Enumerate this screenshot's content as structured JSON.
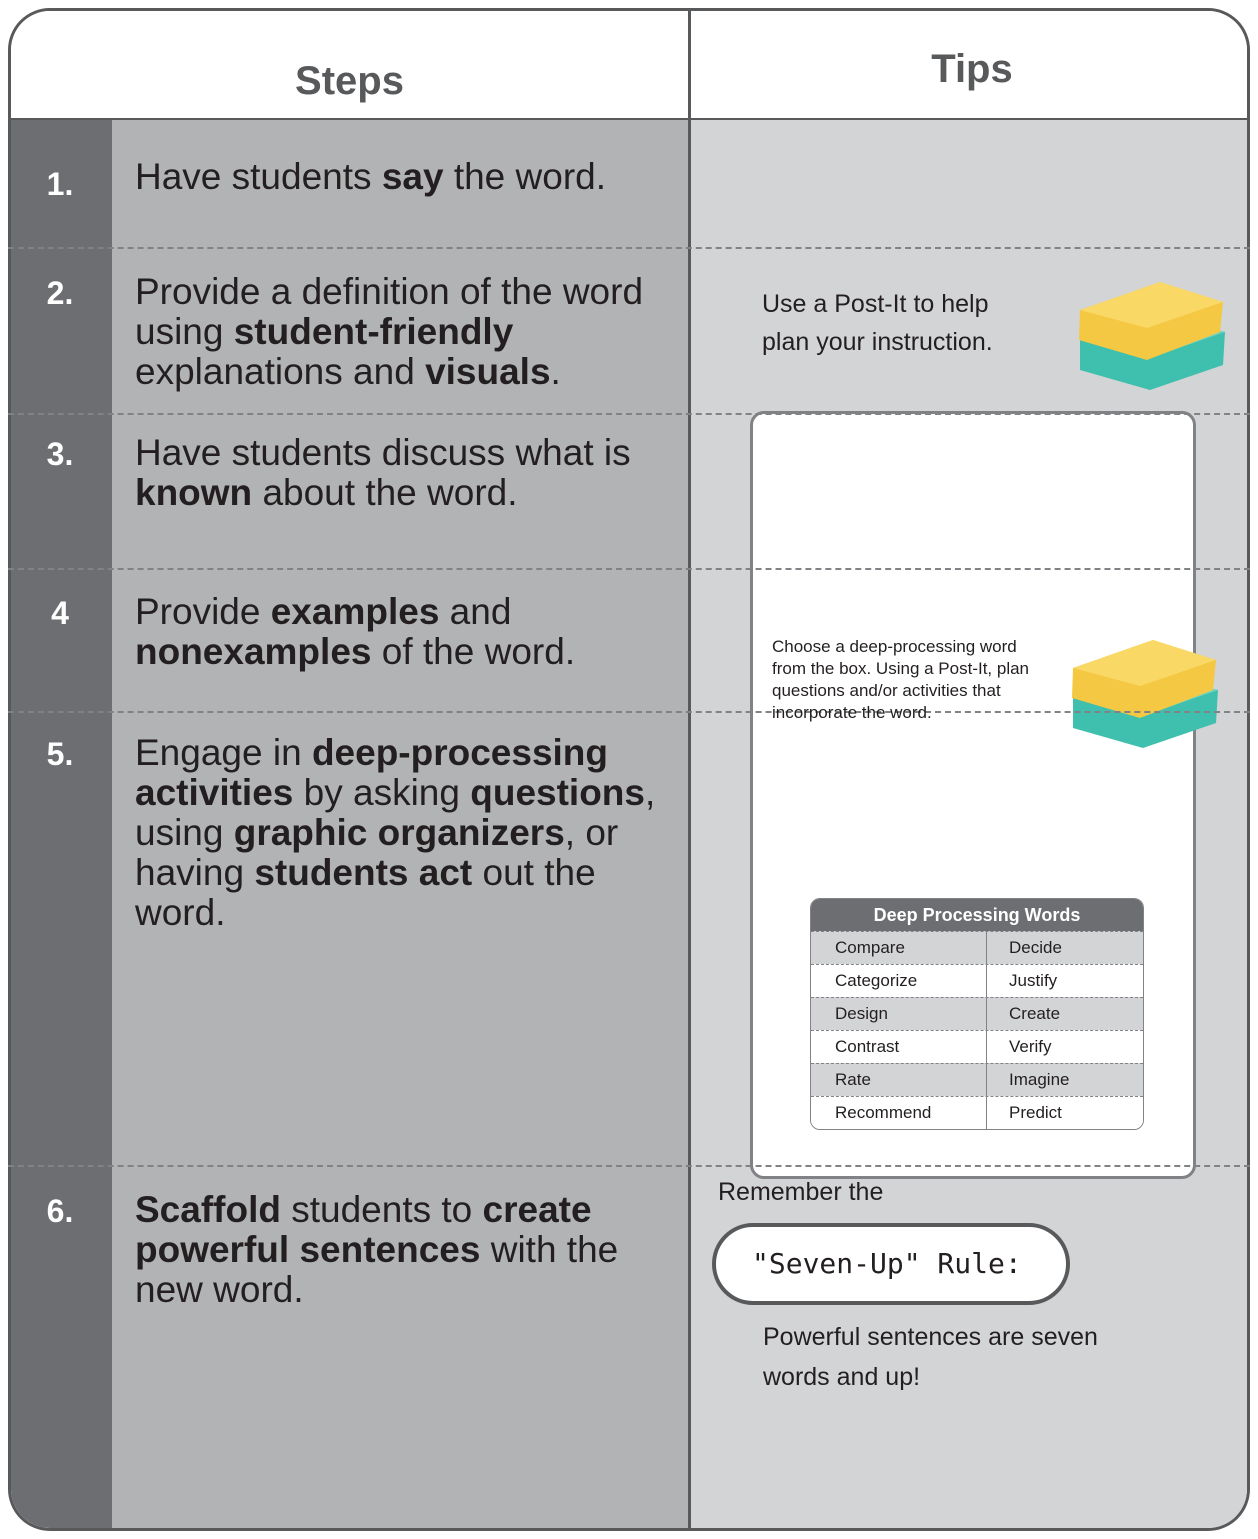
{
  "header": {
    "steps": "Steps",
    "tips": "Tips"
  },
  "rows": [
    {
      "number": "1.",
      "step": [
        {
          "text": "Have students "
        },
        {
          "text": "say",
          "bold": true
        },
        {
          "text": " the word."
        }
      ]
    },
    {
      "number": "2.",
      "step": [
        {
          "text": "Provide a definition of the word using "
        },
        {
          "text": "student-friendly",
          "bold": true
        },
        {
          "text": " explanations and "
        },
        {
          "text": "visuals",
          "bold": true
        },
        {
          "text": "."
        }
      ]
    },
    {
      "number": "3.",
      "step": [
        {
          "text": "Have students discuss what is "
        },
        {
          "text": "known",
          "bold": true
        },
        {
          "text": " about the word."
        }
      ]
    },
    {
      "number": "4",
      "step": [
        {
          "text": "Provide "
        },
        {
          "text": "examples",
          "bold": true
        },
        {
          "text": " and "
        },
        {
          "text": "nonexamples",
          "bold": true
        },
        {
          "text": " of the word."
        }
      ]
    },
    {
      "number": "5.",
      "step": [
        {
          "text": "Engage in "
        },
        {
          "text": "deep-processing activities",
          "bold": true
        },
        {
          "text": " by asking "
        },
        {
          "text": "questions",
          "bold": true
        },
        {
          "text": ", using "
        },
        {
          "text": "graphic organizers",
          "bold": true
        },
        {
          "text": ", or having "
        },
        {
          "text": "students act",
          "bold": true
        },
        {
          "text": " out the word."
        }
      ]
    },
    {
      "number": "6.",
      "step": [
        {
          "text": "Scaffold",
          "bold": true
        },
        {
          "text": " students to "
        },
        {
          "text": "create powerful sentences",
          "bold": true
        },
        {
          "text": " with the new word."
        }
      ]
    }
  ],
  "tips": {
    "post_it": {
      "lines": [
        "Use a Post-It to help",
        "plan your instruction."
      ]
    },
    "deep_processing": {
      "lines": [
        "Choose a deep-processing word",
        "from the box. Using a Post-It, plan",
        "questions and/or activities that",
        "incorporate the word."
      ],
      "table": {
        "title": "Deep Processing Words",
        "rows": [
          [
            "Compare",
            "Decide"
          ],
          [
            "Categorize",
            "Justify"
          ],
          [
            "Design",
            "Create"
          ],
          [
            "Contrast",
            "Verify"
          ],
          [
            "Rate",
            "Imagine"
          ],
          [
            "Recommend",
            "Predict"
          ]
        ]
      }
    },
    "seven_up": {
      "intro": "Remember the",
      "rule": "\"Seven-Up\" Rule:",
      "lines": [
        "Powerful sentences are seven",
        "words and up!"
      ]
    }
  }
}
